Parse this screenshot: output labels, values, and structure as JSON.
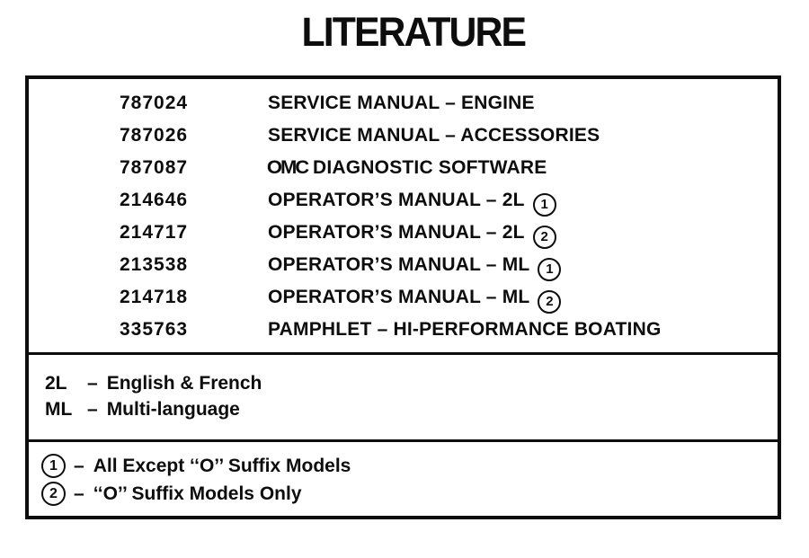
{
  "colors": {
    "ink": "#0d0d0d",
    "paper": "#ffffff"
  },
  "page": {
    "title": "LITERATURE"
  },
  "table": {
    "rows": [
      {
        "part": "787024",
        "desc": "SERVICE MANUAL – ENGINE"
      },
      {
        "part": "787026",
        "desc": "SERVICE MANUAL – ACCESSORIES"
      },
      {
        "part": "787087",
        "brand": "OMC",
        "desc": "DIAGNOSTIC SOFTWARE"
      },
      {
        "part": "214646",
        "desc": "OPERATOR’S MANUAL – 2L",
        "badge": "1"
      },
      {
        "part": "214717",
        "desc": "OPERATOR’S MANUAL – 2L",
        "badge": "2"
      },
      {
        "part": "213538",
        "desc": "OPERATOR’S MANUAL – ML",
        "badge": "1"
      },
      {
        "part": "214718",
        "desc": "OPERATOR’S MANUAL – ML",
        "badge": "2"
      },
      {
        "part": "335763",
        "desc": "PAMPHLET – HI-PERFORMANCE BOATING"
      }
    ]
  },
  "language_legend": [
    {
      "code": "2L",
      "dash": "–",
      "label": "English & French"
    },
    {
      "code": "ML",
      "dash": "–",
      "label": "Multi-language"
    }
  ],
  "footnote_legend": [
    {
      "num": "1",
      "dash": "–",
      "label": "All Except ‘‘O’’ Suffix Models"
    },
    {
      "num": "2",
      "dash": "–",
      "label": "‘‘O’’ Suffix Models Only"
    }
  ]
}
